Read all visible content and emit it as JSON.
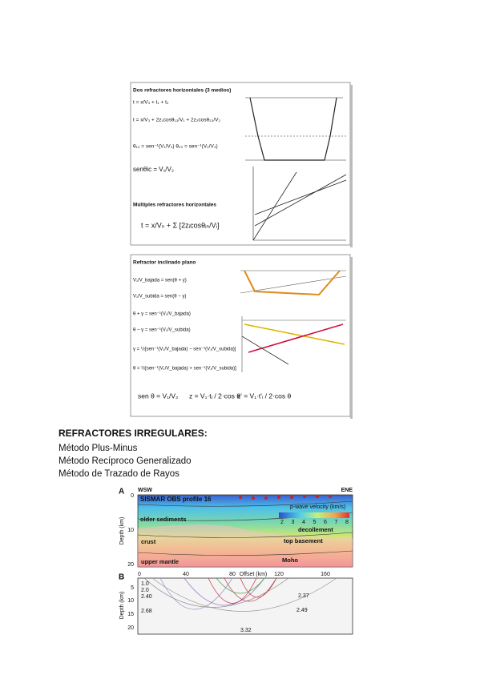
{
  "figure_1": {
    "title": "Dos refractores horizontales (3 medios)",
    "formulas": [
      "t = x/V₃ + t₁ + t₂",
      "t = x/V₃ + 2z₁cosθ₁₃/V₁ + 2z₂cosθ₂₃/V₂",
      "θ₁₃ = sen⁻¹(V₁/V₃)   θ₂₃ = sen⁻¹(V₂/V₃)",
      "senθic = V₁/V₂"
    ],
    "subtitle": "Múltiples refractores horizontales",
    "general_formula": "t = x/Vₙ + Σ [2zᵢcosθᵢₙ/Vᵢ]"
  },
  "figure_2": {
    "title": "Refractor inclinado plano",
    "formulas": [
      "V₁/V_bajada = sen(θ + γ)",
      "V₁/V_subida = sen(θ − γ)",
      "θ + γ = sen⁻¹(V₁/V_bajada)",
      "θ − γ = sen⁻¹(V₁/V_subida)",
      "γ = ½[sen⁻¹(V₁/V_bajada) − sen⁻¹(V₁/V_subida)]",
      "θ = ½[sen⁻¹(V₁/V_bajada) + sen⁻¹(V₁/V_subida)]"
    ],
    "bottom_formulas": [
      "sen θ = V₁/V₂",
      "z = V₁·tᵢ / 2·cos θ",
      "z' = V₁·t'ᵢ / 2·cos θ"
    ]
  },
  "section": {
    "heading": "REFRACTORES IRREGULARES:",
    "items": [
      "Método Plus-Minus",
      "Método Recíproco Generalizado",
      "Método de Trazado de Rayos"
    ]
  },
  "profile": {
    "panel_a": {
      "letter": "A",
      "west": "WSW",
      "east": "ENE",
      "title": "SISMAR OBS profile 16",
      "legend": "p-wave velocity (km/s)",
      "velocity_ticks": [
        2,
        3,
        4,
        5,
        6,
        7,
        8
      ],
      "labels": [
        "older sediments",
        "decollement",
        "crust",
        "top basement",
        "upper mantle",
        "Moho"
      ],
      "y_label": "Depth (km)",
      "yticks": [
        0,
        10,
        20
      ]
    },
    "panel_b": {
      "letter": "B",
      "x_label": "Offset (km)",
      "xticks": [
        0,
        40,
        80,
        120,
        160
      ],
      "y_label": "Depth (km)",
      "yticks": [
        5,
        10,
        15,
        20
      ],
      "velocities": [
        "1.0",
        "2.0",
        "2.40",
        "2.68",
        "2.37",
        "2.49",
        "3.32"
      ]
    }
  }
}
